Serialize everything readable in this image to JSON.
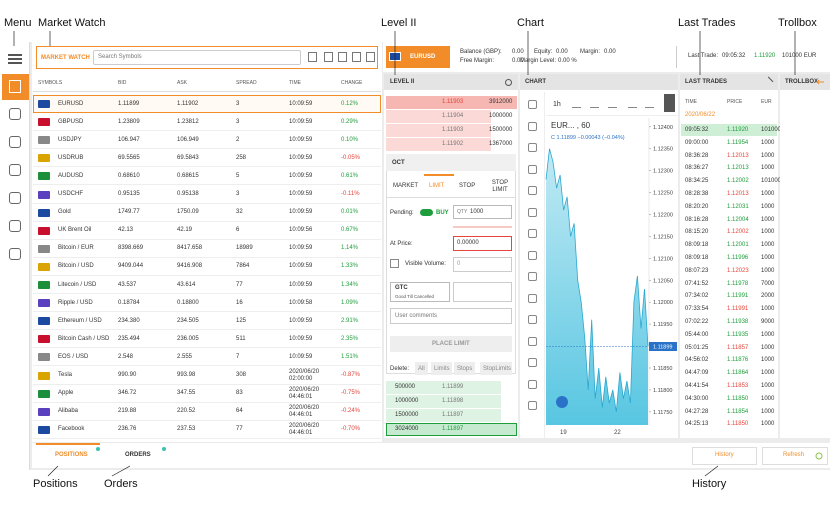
{
  "annotations": {
    "menu": "Menu",
    "market_watch": "Market Watch",
    "level2": "Level II",
    "chart": "Chart",
    "last_trades": "Last Trades",
    "trollbox": "Trollbox",
    "positions": "Positions",
    "orders": "Orders",
    "history": "History"
  },
  "market_watch": {
    "title": "MARKET WATCH",
    "search_placeholder": "Search Symbols",
    "columns": [
      "SYMBOLS",
      "BID",
      "ASK",
      "SPREAD",
      "TIME",
      "CHANGE"
    ],
    "rows": [
      [
        "EURUSD",
        "1.11899",
        "1.11902",
        "3",
        "10:09:59",
        "0.12%"
      ],
      [
        "GBPUSD",
        "1.23809",
        "1.23812",
        "3",
        "10:09:59",
        "0.29%"
      ],
      [
        "USDJPY",
        "106.947",
        "106.949",
        "2",
        "10:09:59",
        "0.10%"
      ],
      [
        "USDRUB",
        "69.5565",
        "69.5843",
        "258",
        "10:09:59",
        "-0.05%"
      ],
      [
        "AUDUSD",
        "0.68610",
        "0.68615",
        "5",
        "10:09:59",
        "0.61%"
      ],
      [
        "USDCHF",
        "0.95135",
        "0.95138",
        "3",
        "10:09:59",
        "-0.11%"
      ],
      [
        "Gold",
        "1749.77",
        "1750.09",
        "32",
        "10:09:59",
        "0.01%"
      ],
      [
        "UK Brent Oil",
        "42.13",
        "42.19",
        "6",
        "10:09:56",
        "0.67%"
      ],
      [
        "Bitcoin / EUR",
        "8398.669",
        "8417.658",
        "18989",
        "10:09:59",
        "1.14%"
      ],
      [
        "Bitcoin / USD",
        "9409.044",
        "9416.908",
        "7864",
        "10:09:59",
        "1.33%"
      ],
      [
        "Litecoin / USD",
        "43.537",
        "43.614",
        "77",
        "10:09:59",
        "1.34%"
      ],
      [
        "Ripple / USD",
        "0.18784",
        "0.18800",
        "16",
        "10:09:58",
        "1.09%"
      ],
      [
        "Ethereum / USD",
        "234.380",
        "234.505",
        "125",
        "10:09:59",
        "2.91%"
      ],
      [
        "Bitcoin Cash / USD",
        "235.494",
        "236.005",
        "511",
        "10:09:59",
        "2.35%"
      ],
      [
        "EOS / USD",
        "2.548",
        "2.555",
        "7",
        "10:09:59",
        "1.51%"
      ],
      [
        "Tesla",
        "990.90",
        "993.98",
        "308",
        "2020/06/20 02:00:00",
        "-0.87%"
      ],
      [
        "Apple",
        "346.72",
        "347.55",
        "83",
        "2020/06/20 04:46:01",
        "-0.75%"
      ],
      [
        "Alibaba",
        "219.88",
        "220.52",
        "64",
        "2020/06/20 04:46:01",
        "-0.24%"
      ],
      [
        "Facebook",
        "236.76",
        "237.53",
        "77",
        "2020/06/20 04:46:01",
        "-0.70%"
      ]
    ]
  },
  "account": {
    "symbol": "EURUSD",
    "balance_label": "Balance (GBP):",
    "balance": "0.00",
    "equity_label": "Equity:",
    "equity": "0.00",
    "margin_label": "Margin:",
    "margin": "0.00",
    "free_margin_label": "Free Margin:",
    "free_margin": "0.00",
    "margin_level_label": "Margin Level:",
    "margin_level": "0.00 %",
    "last_trade_label": "Last Trade:",
    "last_trade_time": "09:05:32",
    "last_trade_price": "1.11920",
    "last_trade_size": "101000 EUR"
  },
  "level2": {
    "title": "LEVEL II",
    "asks": [
      [
        "1.11903",
        "3912000"
      ],
      [
        "1.11904",
        "1000000"
      ],
      [
        "1.11903",
        "1500000"
      ],
      [
        "1.11902",
        "1367000"
      ]
    ],
    "bids": [
      [
        "500000",
        "1.11899"
      ],
      [
        "1000000",
        "1.11898"
      ],
      [
        "1500000",
        "1.11897"
      ],
      [
        "3024000",
        "1.11897"
      ]
    ]
  },
  "order": {
    "title": "OCT",
    "tabs": [
      "MARKET",
      "LIMIT",
      "STOP",
      "STOP LIMIT"
    ],
    "pending_label": "Pending:",
    "side": "BUY",
    "qty_label": "QTY",
    "qty": "1000",
    "price_label": "At Price:",
    "price": "0.00000",
    "visible_volume_label": "Visible Volume:",
    "visible_volume": "0",
    "tif": "GTC",
    "tif_desc": "Good Till Cancelled",
    "comments_placeholder": "User comments",
    "submit": "PLACE LIMIT",
    "delete_label": "Delete:",
    "delete_options": [
      "All",
      "Limits",
      "Stops",
      "StopLimits"
    ]
  },
  "chart": {
    "title": "CHART",
    "interval": "1h",
    "symbol": "EUR... , 60",
    "quote": "C 1.11899 −0.00043 (−0.04%)",
    "type": "area",
    "color": "#4fc3e0",
    "ylim": [
      1.1172,
      1.1242
    ],
    "yticks": [
      {
        "value": 1.124,
        "label": "1.12400"
      },
      {
        "value": 1.1235,
        "label": "1.12350"
      },
      {
        "value": 1.123,
        "label": "1.12300"
      },
      {
        "value": 1.1225,
        "label": "1.12250"
      },
      {
        "value": 1.122,
        "label": "1.12200"
      },
      {
        "value": 1.1215,
        "label": "1.12150"
      },
      {
        "value": 1.121,
        "label": "1.12100"
      },
      {
        "value": 1.1205,
        "label": "1.12050"
      },
      {
        "value": 1.12,
        "label": "1.12000"
      },
      {
        "value": 1.1195,
        "label": "1.11950"
      },
      {
        "value": 1.1185,
        "label": "1.11850"
      },
      {
        "value": 1.118,
        "label": "1.11800"
      },
      {
        "value": 1.1175,
        "label": "1.11750"
      }
    ],
    "current": {
      "value": 1.11899,
      "label": "1.11899"
    },
    "x_labels": [
      "19",
      "22"
    ],
    "values": [
      1.1228,
      1.1235,
      1.1232,
      1.1226,
      1.1229,
      1.1221,
      1.1224,
      1.1215,
      1.1218,
      1.1205,
      1.12,
      1.1192,
      1.118,
      1.1196,
      1.1178,
      1.1185,
      1.1176,
      1.1183,
      1.1177,
      1.118,
      1.1175,
      1.1184,
      1.1178,
      1.1182,
      1.1177,
      1.12,
      1.1206,
      1.1194,
      1.1203,
      1.119
    ]
  },
  "last_trades": {
    "title": "LAST TRADES",
    "columns": [
      "TIME",
      "PRICE",
      "EUR"
    ],
    "date": "2020/06/22",
    "rows": [
      [
        "09:05:32",
        "1.11920",
        "101000"
      ],
      [
        "09:00:00",
        "1.11954",
        "1000"
      ],
      [
        "08:36:28",
        "1.12013",
        "1000"
      ],
      [
        "08:36:27",
        "1.12013",
        "1000"
      ],
      [
        "08:34:25",
        "1.12002",
        "101000"
      ],
      [
        "08:28:38",
        "1.12013",
        "1000"
      ],
      [
        "08:20:20",
        "1.12031",
        "1000"
      ],
      [
        "08:16:28",
        "1.12004",
        "1000"
      ],
      [
        "08:15:20",
        "1.12002",
        "1000"
      ],
      [
        "08:09:18",
        "1.12001",
        "1000"
      ],
      [
        "08:09:18",
        "1.11996",
        "1000"
      ],
      [
        "08:07:23",
        "1.12023",
        "1000"
      ],
      [
        "07:41:52",
        "1.11978",
        "7000"
      ],
      [
        "07:34:02",
        "1.11991",
        "2000"
      ],
      [
        "07:33:54",
        "1.11991",
        "1000"
      ],
      [
        "07:02:22",
        "1.11938",
        "9000"
      ],
      [
        "05:44:00",
        "1.11935",
        "1000"
      ],
      [
        "05:01:25",
        "1.11857",
        "1000"
      ],
      [
        "04:56:02",
        "1.11876",
        "1000"
      ],
      [
        "04:47:09",
        "1.11864",
        "1000"
      ],
      [
        "04:41:54",
        "1.11853",
        "1000"
      ],
      [
        "04:30:00",
        "1.11850",
        "1000"
      ],
      [
        "04:27:28",
        "1.11854",
        "1000"
      ],
      [
        "04:25:13",
        "1.11850",
        "1000"
      ]
    ]
  },
  "trollbox": {
    "title": "TROLLBOX"
  },
  "bottom": {
    "tabs": [
      "POSITIONS",
      "ORDERS"
    ],
    "history": "History",
    "refresh": "Refresh"
  }
}
